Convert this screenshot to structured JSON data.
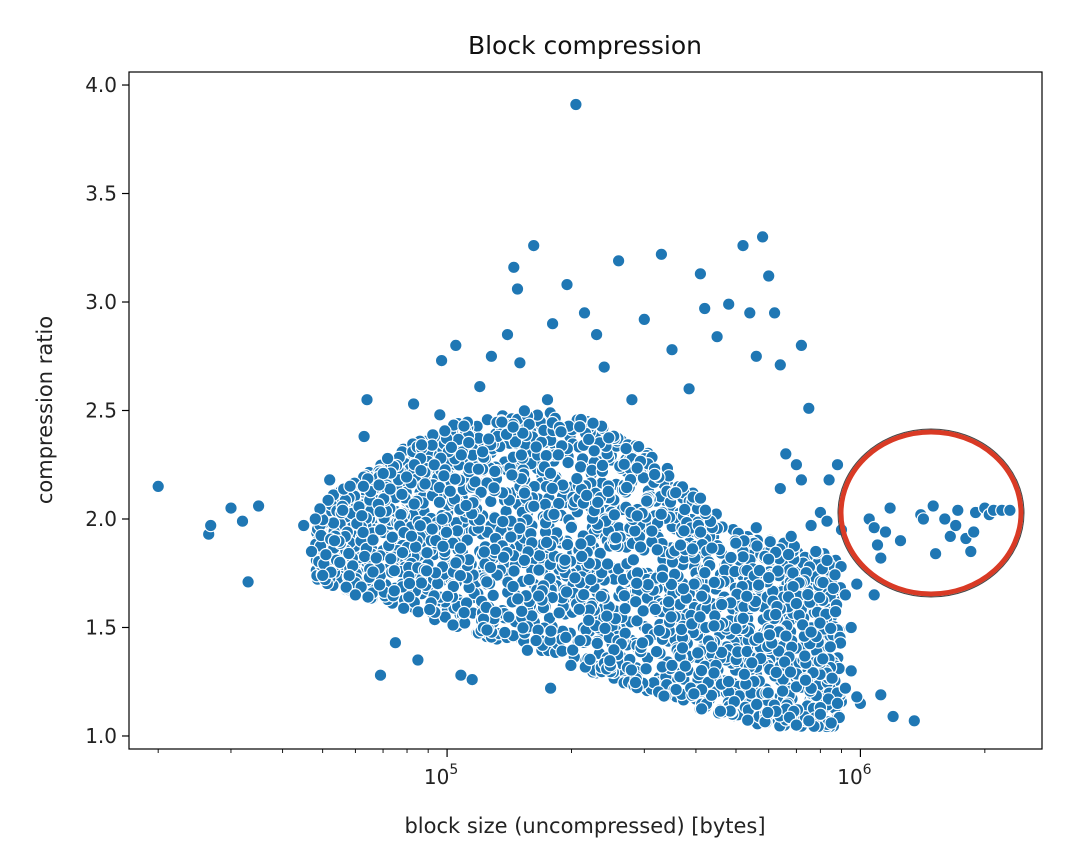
{
  "chart_data": {
    "type": "scatter",
    "title": "Block compression",
    "xlabel": "block size (uncompressed) [bytes]",
    "ylabel": "compression ratio",
    "xscale": "log",
    "xlim": [
      17000,
      2750000
    ],
    "ylim": [
      0.94,
      4.06
    ],
    "x_ticks": [
      {
        "value": 100000,
        "base": "10",
        "exp": "5"
      },
      {
        "value": 1000000,
        "base": "10",
        "exp": "6"
      }
    ],
    "y_ticks": [
      1.0,
      1.5,
      2.0,
      2.5,
      3.0,
      3.5,
      4.0
    ],
    "y_tick_labels": [
      "1.0",
      "1.5",
      "2.0",
      "2.5",
      "3.0",
      "3.5",
      "4.0"
    ],
    "grid": false,
    "marker_color": "#1f77b4",
    "highlight_color": "#d93a25",
    "points": [
      [
        20000,
        2.15
      ],
      [
        26500,
        1.93
      ],
      [
        26800,
        1.97
      ],
      [
        30000,
        2.05
      ],
      [
        32000,
        1.99
      ],
      [
        33000,
        1.71
      ],
      [
        35000,
        2.06
      ],
      [
        45000,
        1.97
      ],
      [
        47000,
        1.85
      ],
      [
        48000,
        2.0
      ],
      [
        50000,
        1.74
      ],
      [
        52000,
        2.18
      ],
      [
        55000,
        1.8
      ],
      [
        60000,
        1.65
      ],
      [
        63000,
        2.38
      ],
      [
        64000,
        2.55
      ],
      [
        69000,
        1.28
      ],
      [
        75000,
        1.43
      ],
      [
        83000,
        2.53
      ],
      [
        85000,
        1.35
      ],
      [
        96000,
        2.48
      ],
      [
        97000,
        2.73
      ],
      [
        105000,
        2.8
      ],
      [
        108000,
        1.28
      ],
      [
        115000,
        1.26
      ],
      [
        120000,
        2.61
      ],
      [
        128000,
        2.75
      ],
      [
        140000,
        2.85
      ],
      [
        145000,
        3.16
      ],
      [
        148000,
        3.06
      ],
      [
        150000,
        2.72
      ],
      [
        162000,
        3.26
      ],
      [
        175000,
        2.55
      ],
      [
        178000,
        1.22
      ],
      [
        180000,
        2.9
      ],
      [
        195000,
        3.08
      ],
      [
        205000,
        3.91
      ],
      [
        215000,
        2.95
      ],
      [
        230000,
        2.85
      ],
      [
        240000,
        2.7
      ],
      [
        260000,
        3.19
      ],
      [
        280000,
        2.55
      ],
      [
        300000,
        2.92
      ],
      [
        330000,
        3.22
      ],
      [
        350000,
        2.78
      ],
      [
        385000,
        2.6
      ],
      [
        410000,
        3.13
      ],
      [
        420000,
        2.97
      ],
      [
        450000,
        2.84
      ],
      [
        480000,
        2.99
      ],
      [
        520000,
        3.26
      ],
      [
        540000,
        2.95
      ],
      [
        560000,
        2.75
      ],
      [
        580000,
        3.3
      ],
      [
        600000,
        3.12
      ],
      [
        620000,
        2.95
      ],
      [
        640000,
        2.71
      ],
      [
        660000,
        2.3
      ],
      [
        700000,
        2.25
      ],
      [
        720000,
        2.8
      ],
      [
        750000,
        2.51
      ],
      [
        560000,
        1.96
      ],
      [
        600000,
        1.73
      ],
      [
        640000,
        2.14
      ],
      [
        680000,
        1.92
      ],
      [
        700000,
        1.61
      ],
      [
        720000,
        2.18
      ],
      [
        760000,
        1.97
      ],
      [
        780000,
        1.85
      ],
      [
        800000,
        2.03
      ],
      [
        830000,
        1.99
      ],
      [
        840000,
        2.18
      ],
      [
        860000,
        1.68
      ],
      [
        880000,
        2.25
      ],
      [
        900000,
        1.95
      ],
      [
        920000,
        1.65
      ],
      [
        950000,
        1.5
      ],
      [
        980000,
        1.7
      ],
      [
        1000000,
        1.15
      ],
      [
        1080000,
        1.65
      ],
      [
        1120000,
        1.19
      ],
      [
        1200000,
        1.09
      ],
      [
        1350000,
        1.07
      ],
      [
        1050000,
        2.0
      ],
      [
        1080000,
        1.96
      ],
      [
        1100000,
        1.88
      ],
      [
        1120000,
        1.82
      ],
      [
        1150000,
        1.94
      ],
      [
        1180000,
        2.05
      ],
      [
        1250000,
        1.9
      ],
      [
        1400000,
        2.02
      ],
      [
        1420000,
        2.0
      ],
      [
        1500000,
        2.06
      ],
      [
        1520000,
        1.84
      ],
      [
        1600000,
        2.0
      ],
      [
        1650000,
        1.92
      ],
      [
        1700000,
        1.97
      ],
      [
        1720000,
        2.04
      ],
      [
        1800000,
        1.91
      ],
      [
        1850000,
        1.85
      ],
      [
        1880000,
        1.94
      ],
      [
        1900000,
        2.03
      ],
      [
        2000000,
        2.05
      ],
      [
        2050000,
        2.02
      ],
      [
        2100000,
        2.04
      ],
      [
        2200000,
        2.04
      ],
      [
        2300000,
        2.04
      ],
      [
        700000,
        1.05
      ],
      [
        750000,
        1.07
      ],
      [
        800000,
        1.1
      ],
      [
        850000,
        1.06
      ],
      [
        880000,
        1.15
      ],
      [
        920000,
        1.22
      ],
      [
        950000,
        1.3
      ],
      [
        980000,
        1.18
      ]
    ]
  }
}
